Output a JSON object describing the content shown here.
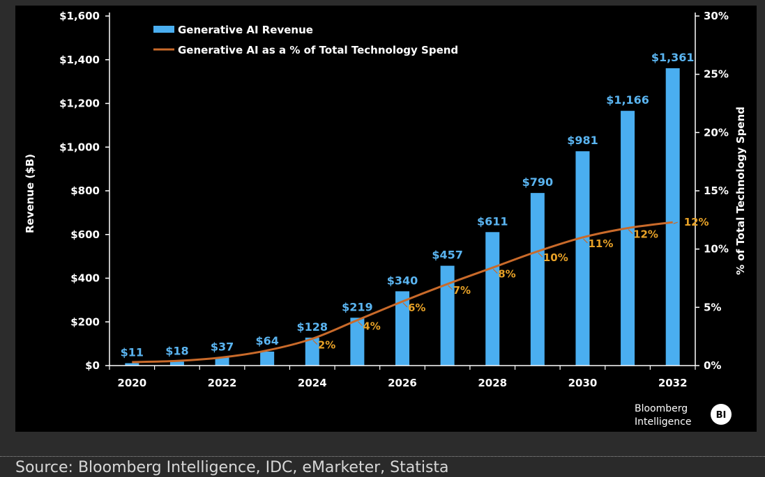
{
  "chart_data": {
    "type": "bar",
    "title": "",
    "years": [
      2020,
      2021,
      2022,
      2023,
      2024,
      2025,
      2026,
      2027,
      2028,
      2029,
      2030,
      2031,
      2032
    ],
    "x_tick_labels": [
      "2020",
      "2022",
      "2024",
      "2026",
      "2028",
      "2030",
      "2032"
    ],
    "series": [
      {
        "name": "Generative AI Revenue",
        "kind": "bar",
        "axis": "left",
        "color": "#4aaef0",
        "values": [
          11,
          18,
          37,
          64,
          128,
          219,
          340,
          457,
          611,
          790,
          981,
          1166,
          1361
        ],
        "labels": [
          "$11",
          "$18",
          "$37",
          "$64",
          "$128",
          "$219",
          "$340",
          "$457",
          "$611",
          "$790",
          "$981",
          "$1,166",
          "$1,361"
        ]
      },
      {
        "name": "Generative AI as a % of Total Technology Spend",
        "kind": "line",
        "axis": "right",
        "color": "#c96a2a",
        "label_color": "#e8a227",
        "values": [
          0.3,
          0.4,
          0.7,
          1.3,
          2.3,
          3.9,
          5.5,
          7.0,
          8.4,
          9.8,
          11.0,
          11.8,
          12.3
        ],
        "labels": [
          null,
          null,
          null,
          null,
          "2%",
          "4%",
          "6%",
          "7%",
          "8%",
          "10%",
          "11%",
          "12%",
          "12%"
        ]
      }
    ],
    "y_left": {
      "label": "Revenue ($B)",
      "min": 0,
      "max": 1600,
      "ticks": [
        "$0",
        "$200",
        "$400",
        "$600",
        "$800",
        "$1,000",
        "$1,200",
        "$1,400",
        "$1,600"
      ]
    },
    "y_right": {
      "label": "% of Total Technology Spend",
      "min": 0,
      "max": 30,
      "ticks": [
        "0%",
        "5%",
        "10%",
        "15%",
        "20%",
        "25%",
        "30%"
      ]
    },
    "legend_position": "top-left",
    "grid": false
  },
  "logo": {
    "line1": "Bloomberg",
    "line2": "Intelligence",
    "badge": "BI"
  },
  "source": "Source: Bloomberg Intelligence, IDC, eMarketer, Statista"
}
